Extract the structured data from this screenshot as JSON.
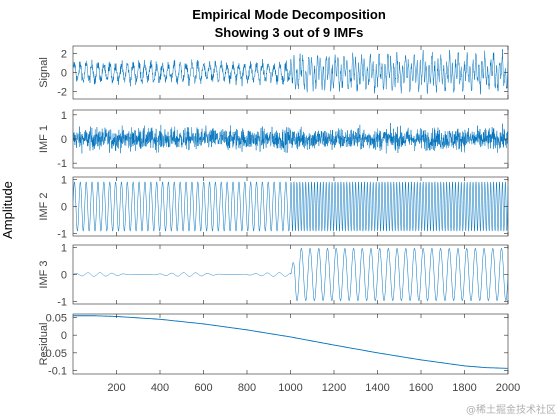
{
  "chart_data": {
    "type": "line",
    "title": "Empirical Mode Decomposition",
    "subtitle": "Showing 3 out of 9 IMFs",
    "ylabel": "Amplitude",
    "xlim": [
      0,
      2000
    ],
    "x_ticks": [
      "200",
      "400",
      "600",
      "800",
      "1000",
      "1200",
      "1400",
      "1600",
      "1800",
      "2000"
    ],
    "line_color": "#0072BD",
    "grid": false,
    "panels": [
      {
        "name": "Signal",
        "ylim": [
          -2.8,
          2.8
        ],
        "y_ticks": [
          2,
          0,
          -2
        ],
        "y_tick_labels": [
          "2",
          "0",
          "-2"
        ],
        "description": "noisy oscillation, amplitude ~1.5 before sample 1000, larger after"
      },
      {
        "name": "IMF 1",
        "ylim": [
          -1.2,
          1.2
        ],
        "y_ticks": [
          1,
          0,
          -1
        ],
        "y_tick_labels": [
          "1",
          "0",
          "-1"
        ],
        "description": "high-frequency component, amplitude ~0.9"
      },
      {
        "name": "IMF 2",
        "ylim": [
          -1.1,
          1.1
        ],
        "y_ticks": [
          1,
          0,
          -1
        ],
        "y_tick_labels": [
          "1",
          "0",
          "-1"
        ],
        "description": "sinusoid amplitude ~0.9, frequency increases after sample 1000"
      },
      {
        "name": "IMF 3",
        "ylim": [
          -1.1,
          1.1
        ],
        "y_ticks": [
          1,
          0,
          -1
        ],
        "y_tick_labels": [
          "1",
          "0",
          "-1"
        ],
        "description": "near zero before sample 1000, sinusoid amplitude ~1 after"
      },
      {
        "name": "Residual",
        "ylim": [
          -0.11,
          0.06
        ],
        "y_ticks": [
          0.05,
          0,
          -0.05,
          -0.1
        ],
        "y_tick_labels": [
          "0.05",
          "0",
          "-0.05",
          "-0.1"
        ],
        "trend": {
          "x": [
            0,
            100,
            200,
            400,
            600,
            800,
            1000,
            1200,
            1400,
            1600,
            1800,
            1900,
            2000
          ],
          "y": [
            0.055,
            0.055,
            0.053,
            0.045,
            0.032,
            0.015,
            -0.005,
            -0.028,
            -0.05,
            -0.07,
            -0.087,
            -0.092,
            -0.094
          ]
        }
      }
    ]
  },
  "watermark": "@稀土掘金技术社区"
}
